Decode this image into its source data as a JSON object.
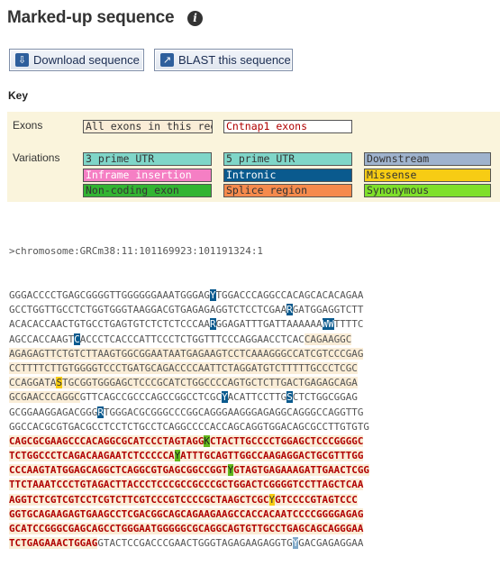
{
  "page": {
    "title": "Marked-up sequence",
    "info_icon": "info-icon"
  },
  "toolbar": {
    "download_label": "Download sequence",
    "download_icon": "download-icon",
    "blast_label": "BLAST this sequence",
    "blast_icon": "blast-icon"
  },
  "key": {
    "heading": "Key",
    "exons_label": "Exons",
    "variations_label": "Variations",
    "exons": [
      {
        "label": "All exons in this region",
        "color": "#faedd7",
        "text_color": "#333333"
      },
      {
        "label": "Cntnap1 exons",
        "color": "#ffffff",
        "text_color": "#b00000"
      }
    ],
    "variations": [
      {
        "label": "3 prime UTR",
        "color": "#7fd6c8",
        "text_color": "#333333"
      },
      {
        "label": "5 prime UTR",
        "color": "#7fd6c8",
        "text_color": "#333333"
      },
      {
        "label": "Downstream",
        "color": "#9fb3cd",
        "text_color": "#333333"
      },
      {
        "label": "Inframe insertion",
        "color": "#f57fc4",
        "text_color": "#ffffff"
      },
      {
        "label": "Intronic",
        "color": "#0a5a8e",
        "text_color": "#ffffff"
      },
      {
        "label": "Missense",
        "color": "#f7cc14",
        "text_color": "#333333"
      },
      {
        "label": "Non-coding exon",
        "color": "#32b432",
        "text_color": "#333333"
      },
      {
        "label": "Splice region",
        "color": "#f58a4c",
        "text_color": "#333333"
      },
      {
        "label": "Synonymous",
        "color": "#7fe02a",
        "text_color": "#333333"
      }
    ]
  },
  "sequence": {
    "header": ">chromosome:GRCm38:11:101169923:101191324:1",
    "lines": [
      [
        [
          "GGGACCCCTGAGCGGGGTTGGGGGGAAATGGGAG",
          ""
        ],
        [
          "Y",
          "v-int"
        ],
        [
          "TGGACCCAGGCCACAGCACACAGAA",
          ""
        ]
      ],
      [
        [
          "GCCTGGTTGCCTCTGGTGGGTAAGGACGTGAGAGAGGTCTCCTCGAA",
          ""
        ],
        [
          "R",
          "v-int"
        ],
        [
          "GATGGAGGTCTT",
          ""
        ]
      ],
      [
        [
          "ACACACCAACTGTGCCTGAGTGTCTCTCTCCCAA",
          ""
        ],
        [
          "R",
          "v-int"
        ],
        [
          "GGAGATTTGATTAAAAAA",
          ""
        ],
        [
          "WW",
          "v-int"
        ],
        [
          "TTTTC",
          ""
        ]
      ],
      [
        [
          "AGCCACCAAGT",
          ""
        ],
        [
          "C",
          "v-int"
        ],
        [
          "ACCCTCACCCATTCCCTCTGGTTTCCCAGGAACCTCAC",
          ""
        ],
        [
          "CAGAAGGC",
          "ex"
        ]
      ],
      [
        [
          "AGAGAGTTCTGTCTTAAGTGGCGGAATAATGAGAAGTCCTCAAAGGGCCATCGTCCCGAG",
          "ex"
        ]
      ],
      [
        [
          "CCTTTTCTTGTGGGGTCCCTGATGCAGACCCCAATTCTAGGATGTCTTTTTGCCCTCGC",
          "ex"
        ]
      ],
      [
        [
          "CCAGGATA",
          "ex"
        ],
        [
          "S",
          "v-mis"
        ],
        [
          "TGCGGTGGGAGCTCCCGCATCTGGCCCCAGTGCTCTTGACTGAGAGCAGA",
          "ex"
        ]
      ],
      [
        [
          "GCGAACCCAGGC",
          "ex"
        ],
        [
          "GTTCAGCCGCCCAGCCGGCCTCGC",
          ""
        ],
        [
          "Y",
          "v-int"
        ],
        [
          "ACATTCCTTG",
          ""
        ],
        [
          "S",
          "v-int"
        ],
        [
          "CTCTGGCGGAG",
          ""
        ]
      ],
      [
        [
          "GCGGAAGGAGACGGG",
          ""
        ],
        [
          "R",
          "v-int"
        ],
        [
          "TGGGACGCGGGCCCGGCAGGGAAGGGAGAGGCAGGGCCAGGTTG",
          ""
        ]
      ],
      [
        [
          "GGCCACGCGTGACGCCTCCTCTGCCTCAGGCCCCACCAGCAGGTGGACAGCGCCTTGTGTG",
          ""
        ]
      ],
      [
        [
          "CAGCGCGAAGCCCACAGGCGCATCCCTAGTAGG",
          "ex2"
        ],
        [
          "K",
          "v-syn"
        ],
        [
          "CTACTTGCCCCTGGAGCTCCCGGGGC",
          "ex2"
        ]
      ],
      [
        [
          "TCTGGCCCTCAGACAAGAATCTCCCCCA",
          "ex2"
        ],
        [
          "Y",
          "v-syn"
        ],
        [
          "ATTTGCAGTTGGCCAAGAGGACTGCGTTTGG",
          "ex2"
        ]
      ],
      [
        [
          "CCCAAGTATGGAGCAGGCTCAGGCGTGAGCGGCCGGT",
          "ex2"
        ],
        [
          "Y",
          "v-syn"
        ],
        [
          "GTAGTGAGAAAGATTGAACTCGG",
          "ex2"
        ]
      ],
      [
        [
          "TTCTAAATCCCTGTAGACTTACCCTCCCGCCGCCCGCTGGACTCGGGGTCCTTAGCTCAA",
          "ex2"
        ]
      ],
      [
        [
          "AGGTCTCGTCGTCCTCGTCTTCGTCCCGTCCCCGCTAAGCTCGC",
          "ex2"
        ],
        [
          "Y",
          "v-mis"
        ],
        [
          "GTCCCCGTAGTCCC",
          "ex2"
        ]
      ],
      [
        [
          "GGTGCAGAAGAGTGAAGCCTCGACGGCAGCAGAAGAAGCCACCACAATCCCCGGGGAGAG",
          "ex2"
        ]
      ],
      [
        [
          "GCATCCGGGCGAGCAGCCTGGGAATGGGGGCGCAGGCAGTGTTGCCTGAGCAGCAGGGAA",
          "ex2"
        ]
      ],
      [
        [
          "TCTGAGAAACTGGAG",
          "ex2"
        ],
        [
          "GTACTCCGACCCGAACTGGGTAGAGAAGAGGTG",
          ""
        ],
        [
          "Y",
          "v-dn"
        ],
        [
          "GACGAGAGGAA",
          ""
        ]
      ]
    ]
  }
}
